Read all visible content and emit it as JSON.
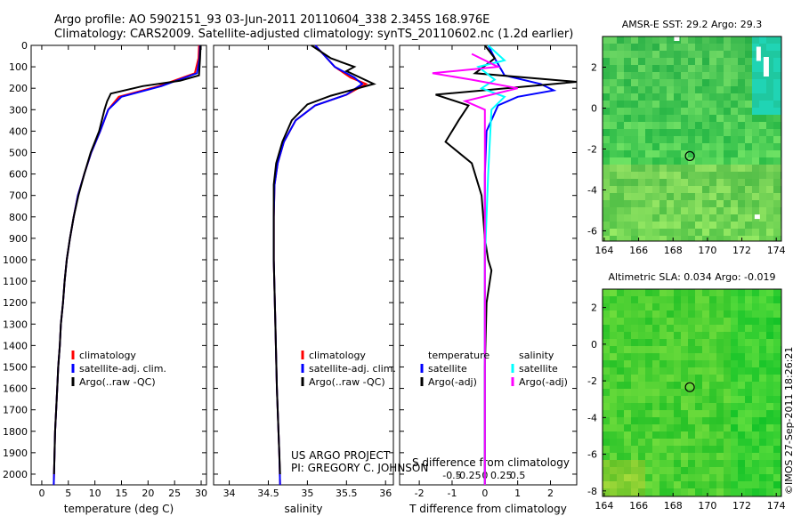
{
  "title": {
    "line1": "Argo profile: AO 5902151_93 03-Jun-2011 20110604_338 2.345S 168.976E",
    "line2": "Climatology: CARS2009. Satellite-adjusted climatology: synTS_20110602.nc (1.2d earlier)"
  },
  "colors": {
    "clim": "#ff0000",
    "sat": "#0000ff",
    "argo": "#000000",
    "sat_s": "#00ffff",
    "argo_s": "#ff00ff"
  },
  "stamp": "©IMOS 27-Sep-2011 18:26:21",
  "credit": {
    "line1": "US ARGO PROJECT",
    "line2": "PI: GREGORY C. JOHNSON"
  },
  "chart_data": [
    {
      "id": "temperature",
      "type": "line",
      "xlabel": "temperature (deg C)",
      "ylabel": "depth",
      "xlim": [
        -2,
        31
      ],
      "ylim": [
        2050,
        0
      ],
      "xticks": [
        0,
        5,
        10,
        15,
        20,
        25,
        30
      ],
      "yticks": [
        0,
        100,
        200,
        300,
        400,
        500,
        600,
        700,
        800,
        900,
        1000,
        1100,
        1200,
        1300,
        1400,
        1500,
        1600,
        1700,
        1800,
        1900,
        2000
      ],
      "legend": [
        "climatology",
        "satellite-adj. clim.",
        "Argo(..raw -QC)"
      ],
      "series": [
        {
          "name": "climatology",
          "color": "clim",
          "points": [
            [
              29.6,
              0
            ],
            [
              29.5,
              60
            ],
            [
              28.8,
              130
            ],
            [
              22,
              190
            ],
            [
              14.5,
              240
            ],
            [
              12.5,
              300
            ],
            [
              11,
              400
            ],
            [
              9.3,
              500
            ],
            [
              8,
              600
            ],
            [
              6.8,
              700
            ],
            [
              6,
              800
            ],
            [
              5.3,
              900
            ],
            [
              4.7,
              1000
            ],
            [
              4.3,
              1100
            ],
            [
              4,
              1200
            ],
            [
              3.6,
              1300
            ],
            [
              3.4,
              1400
            ],
            [
              3.1,
              1500
            ],
            [
              2.9,
              1600
            ],
            [
              2.7,
              1700
            ],
            [
              2.5,
              1800
            ],
            [
              2.4,
              1900
            ],
            [
              2.3,
              2000
            ],
            [
              2.25,
              2050
            ]
          ]
        },
        {
          "name": "satellite-adj. clim.",
          "color": "sat",
          "points": [
            [
              29.8,
              0
            ],
            [
              29.7,
              60
            ],
            [
              29.2,
              130
            ],
            [
              22.5,
              190
            ],
            [
              15,
              240
            ],
            [
              12.5,
              300
            ],
            [
              11,
              400
            ],
            [
              9.3,
              500
            ],
            [
              8,
              600
            ],
            [
              6.8,
              700
            ],
            [
              6,
              800
            ],
            [
              5.3,
              900
            ],
            [
              4.7,
              1000
            ],
            [
              4.3,
              1100
            ],
            [
              4,
              1200
            ],
            [
              3.6,
              1300
            ],
            [
              3.4,
              1400
            ],
            [
              3.1,
              1500
            ],
            [
              2.9,
              1600
            ],
            [
              2.7,
              1700
            ],
            [
              2.5,
              1800
            ],
            [
              2.4,
              1900
            ],
            [
              2.3,
              2000
            ],
            [
              2.25,
              2050
            ]
          ]
        },
        {
          "name": "Argo",
          "color": "argo",
          "points": [
            [
              29.9,
              0
            ],
            [
              29.8,
              60
            ],
            [
              29.6,
              140
            ],
            [
              26,
              165
            ],
            [
              19,
              190
            ],
            [
              13,
              225
            ],
            [
              12.3,
              260
            ],
            [
              11.8,
              300
            ],
            [
              10.8,
              400
            ],
            [
              9.2,
              500
            ],
            [
              8,
              600
            ],
            [
              6.9,
              700
            ],
            [
              6,
              800
            ],
            [
              5.3,
              900
            ],
            [
              4.7,
              1000
            ],
            [
              4.3,
              1100
            ],
            [
              4,
              1200
            ],
            [
              3.6,
              1300
            ],
            [
              3.4,
              1400
            ],
            [
              3.1,
              1500
            ],
            [
              2.9,
              1600
            ],
            [
              2.7,
              1700
            ],
            [
              2.5,
              1800
            ],
            [
              2.4,
              1900
            ],
            [
              2.3,
              2000
            ]
          ]
        }
      ]
    },
    {
      "id": "salinity",
      "type": "line",
      "xlabel": "salinity",
      "xlim": [
        33.8,
        36.1
      ],
      "ylim": [
        2050,
        0
      ],
      "xticks": [
        34,
        34.5,
        35,
        35.5,
        36
      ],
      "legend": [
        "climatology",
        "satellite-adj. clim.",
        "Argo(..raw -QC)"
      ],
      "series": [
        {
          "name": "climatology",
          "color": "clim",
          "points": [
            [
              35.1,
              0
            ],
            [
              35.35,
              100
            ],
            [
              35.55,
              150
            ],
            [
              35.75,
              180
            ],
            [
              35.5,
              230
            ],
            [
              35.1,
              280
            ],
            [
              34.85,
              350
            ],
            [
              34.7,
              450
            ],
            [
              34.62,
              550
            ],
            [
              34.58,
              650
            ],
            [
              34.57,
              800
            ],
            [
              34.57,
              1000
            ],
            [
              34.59,
              1300
            ],
            [
              34.61,
              1600
            ],
            [
              34.64,
              1900
            ],
            [
              34.65,
              2050
            ]
          ]
        },
        {
          "name": "satellite-adj. clim.",
          "color": "sat",
          "points": [
            [
              35.1,
              0
            ],
            [
              35.35,
              100
            ],
            [
              35.6,
              150
            ],
            [
              35.7,
              180
            ],
            [
              35.5,
              230
            ],
            [
              35.1,
              280
            ],
            [
              34.85,
              350
            ],
            [
              34.7,
              450
            ],
            [
              34.62,
              550
            ],
            [
              34.58,
              650
            ],
            [
              34.57,
              800
            ],
            [
              34.57,
              1000
            ],
            [
              34.59,
              1300
            ],
            [
              34.61,
              1600
            ],
            [
              34.64,
              1900
            ],
            [
              34.65,
              2050
            ]
          ]
        },
        {
          "name": "Argo",
          "color": "argo",
          "points": [
            [
              35.05,
              0
            ],
            [
              35.3,
              60
            ],
            [
              35.6,
              100
            ],
            [
              35.5,
              120
            ],
            [
              35.85,
              180
            ],
            [
              35.3,
              235
            ],
            [
              35,
              275
            ],
            [
              34.8,
              350
            ],
            [
              34.68,
              450
            ],
            [
              34.6,
              550
            ],
            [
              34.57,
              650
            ],
            [
              34.57,
              800
            ],
            [
              34.57,
              1000
            ],
            [
              34.59,
              1300
            ],
            [
              34.61,
              1600
            ],
            [
              34.64,
              1900
            ],
            [
              34.65,
              2000
            ]
          ]
        }
      ]
    },
    {
      "id": "difference",
      "type": "line",
      "xlabel": "T difference from climatology",
      "xlabel_top": "S difference from climatology",
      "xlim": [
        -2.6,
        2.8
      ],
      "ylim": [
        2050,
        0
      ],
      "xticks_T": [
        -2,
        -1,
        0,
        1,
        2
      ],
      "xticks_S": [
        -0.5,
        -0.25,
        0,
        0.25,
        0.5
      ],
      "legend_T": [
        "temperature",
        "satellite",
        "Argo(-adj)"
      ],
      "legend_S": [
        "salinity",
        "satellite",
        "Argo(-adj)"
      ],
      "series": [
        {
          "name": "temperature satellite",
          "color": "sat",
          "points": [
            [
              0.1,
              0
            ],
            [
              0.3,
              60
            ],
            [
              0.6,
              140
            ],
            [
              1.7,
              180
            ],
            [
              2.1,
              210
            ],
            [
              1,
              240
            ],
            [
              0.4,
              280
            ],
            [
              0.05,
              400
            ],
            [
              0,
              600
            ],
            [
              0,
              1000
            ],
            [
              0,
              1500
            ],
            [
              0,
              2050
            ]
          ]
        },
        {
          "name": "temperature Argo(-adj)",
          "color": "argo",
          "points": [
            [
              0,
              0
            ],
            [
              0.3,
              60
            ],
            [
              -0.3,
              130
            ],
            [
              3.0,
              170
            ],
            [
              -1.5,
              230
            ],
            [
              -0.5,
              280
            ],
            [
              -0.8,
              350
            ],
            [
              -1.2,
              450
            ],
            [
              -0.4,
              550
            ],
            [
              -0.1,
              700
            ],
            [
              0,
              900
            ],
            [
              0.1,
              1000
            ],
            [
              0.2,
              1050
            ],
            [
              0.05,
              1200
            ],
            [
              0,
              1500
            ],
            [
              0,
              2050
            ]
          ]
        },
        {
          "name": "salinity satellite",
          "color": "sat_s",
          "points": [
            [
              0.05,
              0
            ],
            [
              0.3,
              70
            ],
            [
              -0.1,
              100
            ],
            [
              0.15,
              160
            ],
            [
              -0.05,
              200
            ],
            [
              0.3,
              240
            ],
            [
              0.1,
              300
            ],
            [
              0.05,
              600
            ],
            [
              0,
              1000
            ],
            [
              0,
              1500
            ],
            [
              0,
              2050
            ]
          ]
        },
        {
          "name": "salinity Argo(-adj)",
          "color": "argo_s",
          "points": [
            [
              -0.2,
              40
            ],
            [
              0.2,
              100
            ],
            [
              -0.8,
              130
            ],
            [
              -0.2,
              160
            ],
            [
              0.5,
              200
            ],
            [
              -0.3,
              260
            ],
            [
              0,
              300
            ],
            [
              0,
              500
            ],
            [
              0,
              2050
            ]
          ]
        }
      ]
    },
    {
      "id": "sst_map",
      "type": "heatmap",
      "title": "AMSR-E SST: 29.2 Argo: 29.3",
      "xlim": [
        163.9,
        174.3
      ],
      "ylim": [
        -6.5,
        3.5
      ],
      "xticks": [
        164,
        166,
        168,
        170,
        172,
        174
      ],
      "yticks": [
        2,
        0,
        -2,
        -4,
        -6
      ],
      "marker": [
        168.976,
        -2.345
      ]
    },
    {
      "id": "sla_map",
      "type": "heatmap",
      "title": "Altimetric SLA: 0.034 Argo: -0.019",
      "xlim": [
        163.9,
        174.3
      ],
      "ylim": [
        -8.3,
        3
      ],
      "xticks": [
        164,
        166,
        168,
        170,
        172,
        174
      ],
      "yticks": [
        2,
        0,
        -2,
        -4,
        -6,
        -8
      ],
      "marker": [
        168.976,
        -2.345
      ]
    }
  ]
}
